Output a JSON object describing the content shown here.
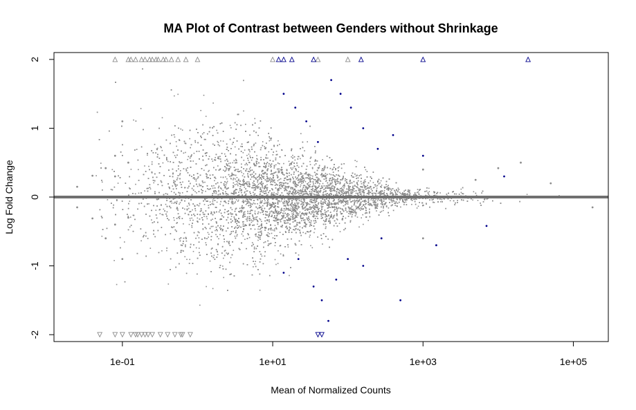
{
  "chart_data": {
    "type": "scatter",
    "title": "MA Plot of Contrast between Genders without Shrinkage",
    "xlabel": "Mean of Normalized Counts",
    "ylabel": "Log Fold Change",
    "x_scale": "log10",
    "xlim": [
      0.0123,
      292000.0
    ],
    "ylim": [
      -2.1,
      2.1
    ],
    "x_ticks": [
      {
        "value": 0.1,
        "label": "1e-01"
      },
      {
        "value": 10,
        "label": "1e+01"
      },
      {
        "value": 1000,
        "label": "1e+03"
      },
      {
        "value": 100000,
        "label": "1e+05"
      }
    ],
    "y_ticks": [
      {
        "value": -2,
        "label": "-2"
      },
      {
        "value": -1,
        "label": "-1"
      },
      {
        "value": 0,
        "label": "0"
      },
      {
        "value": 1,
        "label": "1"
      },
      {
        "value": 2,
        "label": "2"
      }
    ],
    "reference_line": {
      "y": 0,
      "color": "#707070"
    },
    "grid": false,
    "legend": "none",
    "colors": {
      "not_significant": "#8c8c8c",
      "significant": "#00008b",
      "hline": "#707070"
    },
    "series": [
      {
        "color": "#8c8c8c",
        "marker": "point",
        "values": [
          [
            0.025,
            0.15
          ],
          [
            0.025,
            -0.15
          ],
          [
            0.04,
            0.31
          ],
          [
            0.04,
            -0.31
          ],
          [
            0.06,
            0.42
          ],
          [
            0.06,
            -0.6
          ],
          [
            0.08,
            0.6
          ],
          [
            0.08,
            0.3
          ],
          [
            0.08,
            -0.4
          ],
          [
            0.1,
            1.1
          ],
          [
            0.1,
            -0.9
          ],
          [
            0.12,
            0.5
          ],
          [
            0.12,
            -0.3
          ],
          [
            20,
            0.2
          ],
          [
            20,
            -0.2
          ],
          [
            50,
            0.3
          ],
          [
            50,
            -0.25
          ],
          [
            200,
            0.15
          ],
          [
            200,
            -0.1
          ],
          [
            1000,
            0.4
          ],
          [
            1000,
            -0.6
          ],
          [
            5000,
            0.25
          ],
          [
            10000,
            0.42
          ],
          [
            20000,
            0.5
          ],
          [
            50000,
            0.2
          ],
          [
            180000,
            -0.15
          ]
        ]
      },
      {
        "color": "#00008b",
        "marker": "point",
        "values": [
          [
            14,
            1.5
          ],
          [
            20,
            1.3
          ],
          [
            28,
            1.1
          ],
          [
            40,
            0.8
          ],
          [
            60,
            1.7
          ],
          [
            80,
            1.5
          ],
          [
            110,
            1.3
          ],
          [
            160,
            1.0
          ],
          [
            250,
            0.7
          ],
          [
            400,
            0.9
          ],
          [
            1000,
            0.6
          ],
          [
            14,
            -1.1
          ],
          [
            22,
            -0.9
          ],
          [
            35,
            -1.3
          ],
          [
            45,
            -1.5
          ],
          [
            55,
            -1.8
          ],
          [
            70,
            -1.2
          ],
          [
            100,
            -0.9
          ],
          [
            160,
            -1.0
          ],
          [
            280,
            -0.6
          ],
          [
            500,
            -1.5
          ],
          [
            1500,
            -0.7
          ],
          [
            7000,
            -0.42
          ],
          [
            12000,
            0.3
          ]
        ]
      }
    ],
    "capped_points": {
      "description_of_shape": "open triangles at y=+2 (pointing up) and y=-2 (pointing down) mark values beyond the plotted range",
      "up_gray_x": [
        0.08,
        0.12,
        0.15,
        0.2,
        0.25,
        0.3,
        0.35,
        0.45,
        0.55,
        0.7,
        1.0,
        0.13,
        0.18,
        0.23,
        0.28,
        0.38
      ],
      "up_blue_x": [
        12,
        14,
        18,
        35,
        150,
        1000,
        25000
      ],
      "up_gray_extra_x": [
        10,
        40,
        100
      ],
      "down_gray_x": [
        0.05,
        0.08,
        0.1,
        0.13,
        0.16,
        0.2,
        0.25,
        0.32,
        0.4,
        0.5,
        0.63,
        0.8,
        0.15,
        0.18,
        0.22
      ],
      "down_blue_x": [
        0.6,
        40,
        45
      ]
    }
  }
}
